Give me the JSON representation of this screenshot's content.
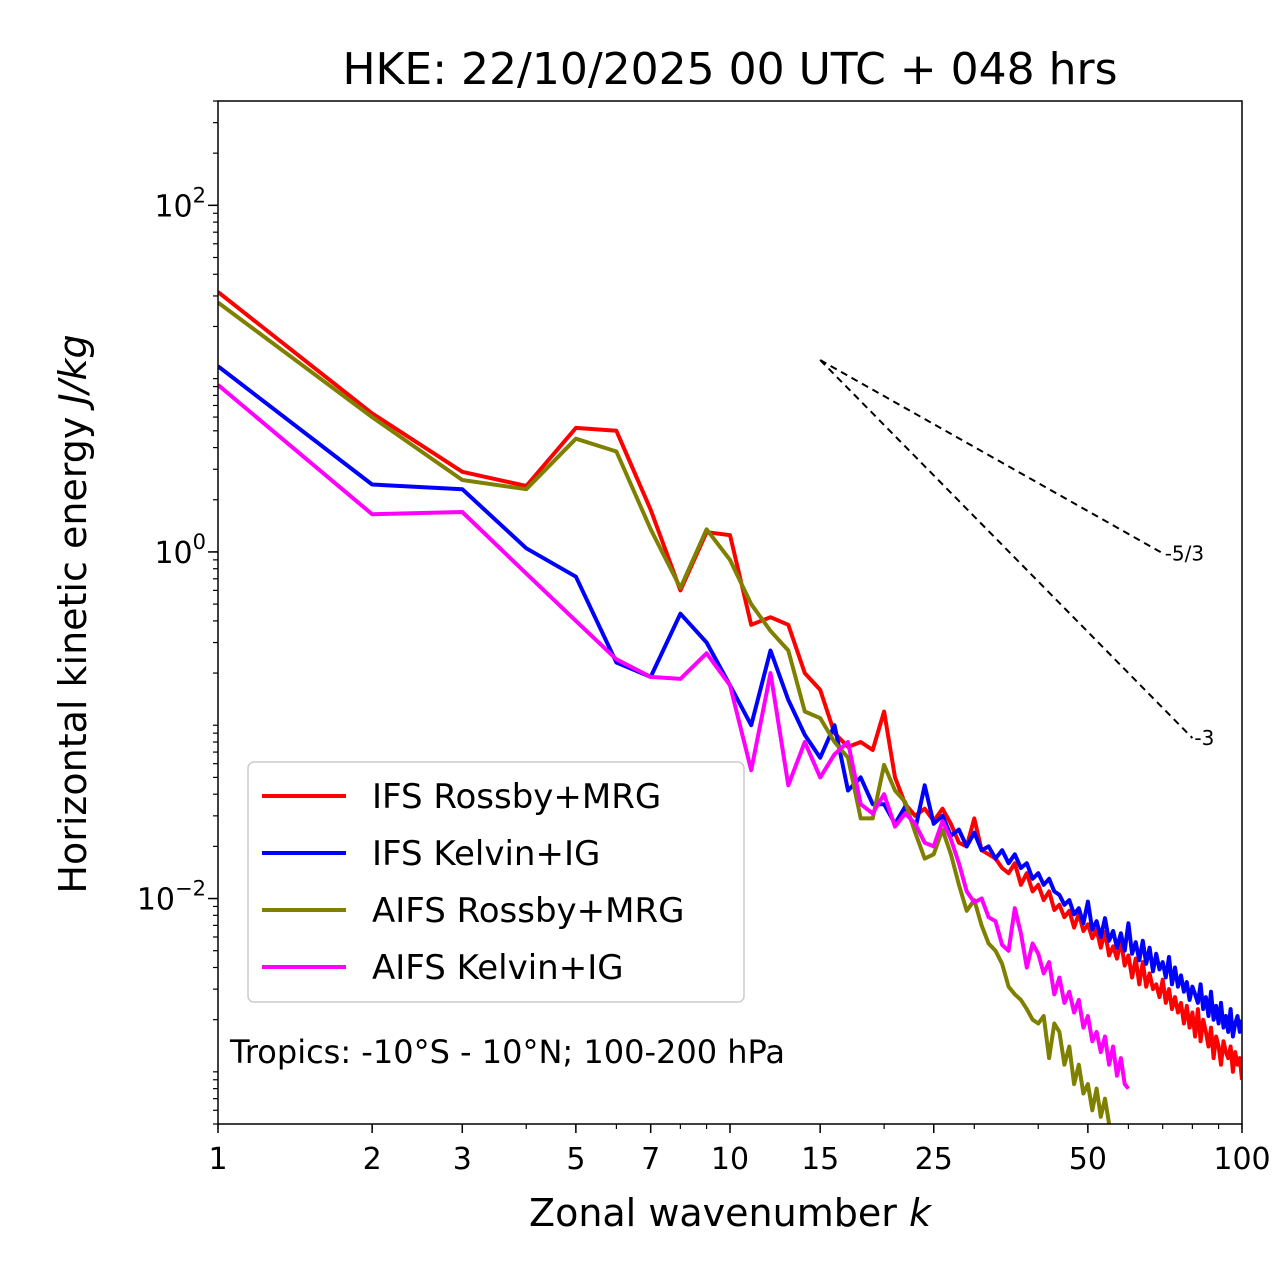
{
  "chart_data": {
    "type": "line",
    "title": "HKE: 22/10/2025 00 UTC + 048 hrs",
    "xlabel": "Zonal wavenumber k",
    "xlabel_main": "Zonal wavenumber ",
    "xlabel_var": "k",
    "ylabel": "Horizontal kinetic energy J/kg",
    "ylabel_main": "Horizontal kinetic energy ",
    "ylabel_unit": "J/kg",
    "xscale": "log",
    "yscale": "log",
    "xlim": [
      1,
      100
    ],
    "ylim": [
      0.0005,
      400
    ],
    "xticks": [
      {
        "value": 1,
        "label": "1"
      },
      {
        "value": 2,
        "label": "2"
      },
      {
        "value": 3,
        "label": "3"
      },
      {
        "value": 5,
        "label": "5"
      },
      {
        "value": 7,
        "label": "7"
      },
      {
        "value": 10,
        "label": "10"
      },
      {
        "value": 15,
        "label": "15"
      },
      {
        "value": 25,
        "label": "25"
      },
      {
        "value": 50,
        "label": "50"
      },
      {
        "value": 100,
        "label": "100"
      }
    ],
    "yticks": [
      {
        "value": 100,
        "base": "10",
        "exp": "2"
      },
      {
        "value": 1,
        "base": "10",
        "exp": "0"
      },
      {
        "value": 0.01,
        "base": "10",
        "exp": "−2"
      }
    ],
    "annotation": "Tropics: -10°S - 10°N; 100-200 hPa",
    "legend_position": "lower-left",
    "reference_slopes": [
      {
        "label": "-5/3",
        "k_start": 15,
        "k_end": 70,
        "E_start": 12.8
      },
      {
        "label": "-3",
        "k_start": 15,
        "k_end": 80,
        "E_start": 12.8
      }
    ],
    "series": [
      {
        "name": "IFS Rossby+MRG",
        "color": "#ff0000",
        "x": [
          1,
          2,
          3,
          4,
          5,
          6,
          7,
          8,
          9,
          10,
          11,
          12,
          13,
          14,
          15,
          16,
          17,
          18,
          19,
          20,
          21,
          22,
          23,
          24,
          25,
          26,
          27,
          28,
          29,
          30,
          31,
          32,
          33,
          34,
          35,
          36,
          37,
          38,
          39,
          40,
          41,
          42,
          43,
          44,
          45,
          46,
          47,
          48,
          49,
          50,
          51,
          52,
          53,
          54,
          55,
          56,
          57,
          58,
          59,
          60,
          61,
          62,
          63,
          64,
          65,
          66,
          67,
          68,
          69,
          70,
          71,
          72,
          73,
          74,
          75,
          76,
          77,
          78,
          79,
          80,
          81,
          82,
          83,
          84,
          85,
          86,
          87,
          88,
          89,
          90,
          91,
          92,
          93,
          94,
          95,
          96,
          97,
          98,
          99,
          100
        ],
        "y": [
          31.6,
          6.3,
          2.9,
          2.4,
          5.2,
          5.0,
          1.75,
          0.6,
          1.3,
          1.25,
          0.38,
          0.42,
          0.38,
          0.2,
          0.16,
          0.09,
          0.075,
          0.08,
          0.072,
          0.12,
          0.05,
          0.035,
          0.03,
          0.033,
          0.028,
          0.033,
          0.027,
          0.021,
          0.02,
          0.029,
          0.019,
          0.018,
          0.017,
          0.015,
          0.014,
          0.016,
          0.012,
          0.014,
          0.011,
          0.012,
          0.0098,
          0.011,
          0.0086,
          0.0092,
          0.0078,
          0.0085,
          0.0068,
          0.0082,
          0.0065,
          0.0071,
          0.0059,
          0.0066,
          0.0052,
          0.0064,
          0.0047,
          0.0053,
          0.0045,
          0.0057,
          0.0041,
          0.0047,
          0.0035,
          0.0045,
          0.0032,
          0.0043,
          0.0031,
          0.0037,
          0.003,
          0.0032,
          0.0027,
          0.0034,
          0.0025,
          0.003,
          0.0023,
          0.0027,
          0.0022,
          0.0025,
          0.0019,
          0.0024,
          0.0018,
          0.0022,
          0.0016,
          0.0023,
          0.0015,
          0.002,
          0.0017,
          0.0014,
          0.0018,
          0.0012,
          0.0016,
          0.0014,
          0.0011,
          0.0015,
          0.0013,
          0.0012,
          0.0014,
          0.001,
          0.0013,
          0.0011,
          0.0012,
          0.0009
        ]
      },
      {
        "name": "IFS Kelvin+IG",
        "color": "#0000ff",
        "x": [
          1,
          2,
          3,
          4,
          5,
          6,
          7,
          8,
          9,
          10,
          11,
          12,
          13,
          14,
          15,
          16,
          17,
          18,
          19,
          20,
          21,
          22,
          23,
          24,
          25,
          26,
          27,
          28,
          29,
          30,
          31,
          32,
          33,
          34,
          35,
          36,
          37,
          38,
          39,
          40,
          41,
          42,
          43,
          44,
          45,
          46,
          47,
          48,
          49,
          50,
          51,
          52,
          53,
          54,
          55,
          56,
          57,
          58,
          59,
          60,
          61,
          62,
          63,
          64,
          65,
          66,
          67,
          68,
          69,
          70,
          71,
          72,
          73,
          74,
          75,
          76,
          77,
          78,
          79,
          80,
          81,
          82,
          83,
          84,
          85,
          86,
          87,
          88,
          89,
          90,
          91,
          92,
          93,
          94,
          95,
          96,
          97,
          98,
          99,
          100
        ],
        "y": [
          11.8,
          2.45,
          2.3,
          1.05,
          0.72,
          0.23,
          0.19,
          0.44,
          0.3,
          0.17,
          0.1,
          0.27,
          0.14,
          0.088,
          0.065,
          0.1,
          0.042,
          0.05,
          0.035,
          0.035,
          0.027,
          0.034,
          0.025,
          0.045,
          0.027,
          0.03,
          0.023,
          0.025,
          0.02,
          0.024,
          0.019,
          0.02,
          0.017,
          0.019,
          0.016,
          0.018,
          0.015,
          0.016,
          0.013,
          0.014,
          0.012,
          0.013,
          0.011,
          0.0105,
          0.0092,
          0.0098,
          0.0081,
          0.0088,
          0.0072,
          0.0096,
          0.0066,
          0.0074,
          0.006,
          0.0077,
          0.0057,
          0.0065,
          0.0052,
          0.0063,
          0.005,
          0.0072,
          0.0048,
          0.0056,
          0.0044,
          0.0057,
          0.0042,
          0.0052,
          0.0038,
          0.0048,
          0.0039,
          0.0043,
          0.0035,
          0.0046,
          0.0032,
          0.004,
          0.0031,
          0.0036,
          0.0029,
          0.0033,
          0.0026,
          0.0031,
          0.0028,
          0.0025,
          0.0032,
          0.0023,
          0.0027,
          0.0021,
          0.0029,
          0.002,
          0.0024,
          0.0019,
          0.0025,
          0.0018,
          0.0021,
          0.0017,
          0.0023,
          0.0016,
          0.0019,
          0.0021,
          0.0017,
          0.002
        ]
      },
      {
        "name": "AIFS Rossby+MRG",
        "color": "#808000",
        "x": [
          1,
          2,
          3,
          4,
          5,
          6,
          7,
          8,
          9,
          10,
          11,
          12,
          13,
          14,
          15,
          16,
          17,
          18,
          19,
          20,
          21,
          22,
          23,
          24,
          25,
          26,
          27,
          28,
          29,
          30,
          31,
          32,
          33,
          34,
          35,
          36,
          37,
          38,
          39,
          40,
          41,
          42,
          43,
          44,
          45,
          46,
          47,
          48,
          49,
          50,
          51,
          52,
          53,
          54,
          55
        ],
        "y": [
          27.5,
          6.0,
          2.6,
          2.3,
          4.5,
          3.8,
          1.35,
          0.62,
          1.35,
          0.9,
          0.5,
          0.35,
          0.27,
          0.12,
          0.11,
          0.08,
          0.065,
          0.029,
          0.029,
          0.059,
          0.042,
          0.036,
          0.024,
          0.017,
          0.018,
          0.025,
          0.018,
          0.012,
          0.0085,
          0.0098,
          0.007,
          0.0055,
          0.005,
          0.0042,
          0.0031,
          0.0028,
          0.0026,
          0.0023,
          0.002,
          0.0019,
          0.0021,
          0.0012,
          0.0019,
          0.0017,
          0.0011,
          0.0014,
          0.00085,
          0.0011,
          0.00075,
          0.00085,
          0.0006,
          0.0008,
          0.00055,
          0.0007,
          0.0005
        ]
      },
      {
        "name": "AIFS Kelvin+IG",
        "color": "#ff00ff",
        "x": [
          1,
          2,
          3,
          4,
          5,
          6,
          7,
          8,
          9,
          10,
          11,
          12,
          13,
          14,
          15,
          16,
          17,
          18,
          19,
          20,
          21,
          22,
          23,
          24,
          25,
          26,
          27,
          28,
          29,
          30,
          31,
          32,
          33,
          34,
          35,
          36,
          37,
          38,
          39,
          40,
          41,
          42,
          43,
          44,
          45,
          46,
          47,
          48,
          49,
          50,
          51,
          52,
          53,
          54,
          55,
          56,
          57,
          58,
          59,
          60
        ],
        "y": [
          9.2,
          1.65,
          1.7,
          0.75,
          0.4,
          0.24,
          0.19,
          0.185,
          0.26,
          0.17,
          0.055,
          0.2,
          0.045,
          0.08,
          0.05,
          0.068,
          0.08,
          0.035,
          0.031,
          0.04,
          0.026,
          0.031,
          0.027,
          0.021,
          0.02,
          0.028,
          0.022,
          0.016,
          0.011,
          0.0095,
          0.01,
          0.0078,
          0.0074,
          0.0054,
          0.005,
          0.0088,
          0.0063,
          0.004,
          0.0055,
          0.0048,
          0.0037,
          0.0043,
          0.0028,
          0.0035,
          0.0025,
          0.0029,
          0.0022,
          0.0026,
          0.0018,
          0.0021,
          0.0015,
          0.0017,
          0.0013,
          0.0016,
          0.0011,
          0.0014,
          0.00095,
          0.0012,
          0.00085,
          0.0008
        ]
      }
    ]
  }
}
